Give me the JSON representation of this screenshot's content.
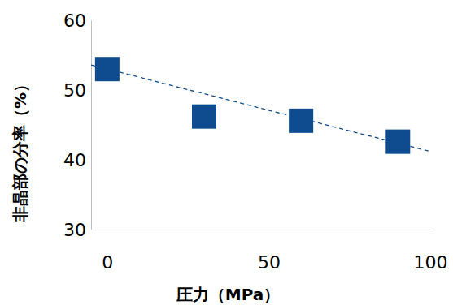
{
  "chart_data": {
    "type": "scatter",
    "x_label": "圧力（MPa）",
    "y_label": "非晶部の分率（%）",
    "xlim": [
      -5,
      100
    ],
    "xticks": [
      0,
      50,
      100
    ],
    "ylim": [
      30,
      60
    ],
    "yticks": [
      30,
      40,
      50,
      60
    ],
    "grid": false,
    "series": [
      {
        "type": "scatter",
        "marker": "square",
        "color": "#0e4c8f",
        "x": [
          0,
          30,
          60,
          90
        ],
        "values": [
          53,
          46.2,
          45.6,
          42.6
        ]
      },
      {
        "type": "line",
        "line_style": "dashed",
        "color": "#0e4c8f",
        "x": [
          -5,
          100
        ],
        "values": [
          53.6,
          41.2
        ]
      }
    ]
  }
}
